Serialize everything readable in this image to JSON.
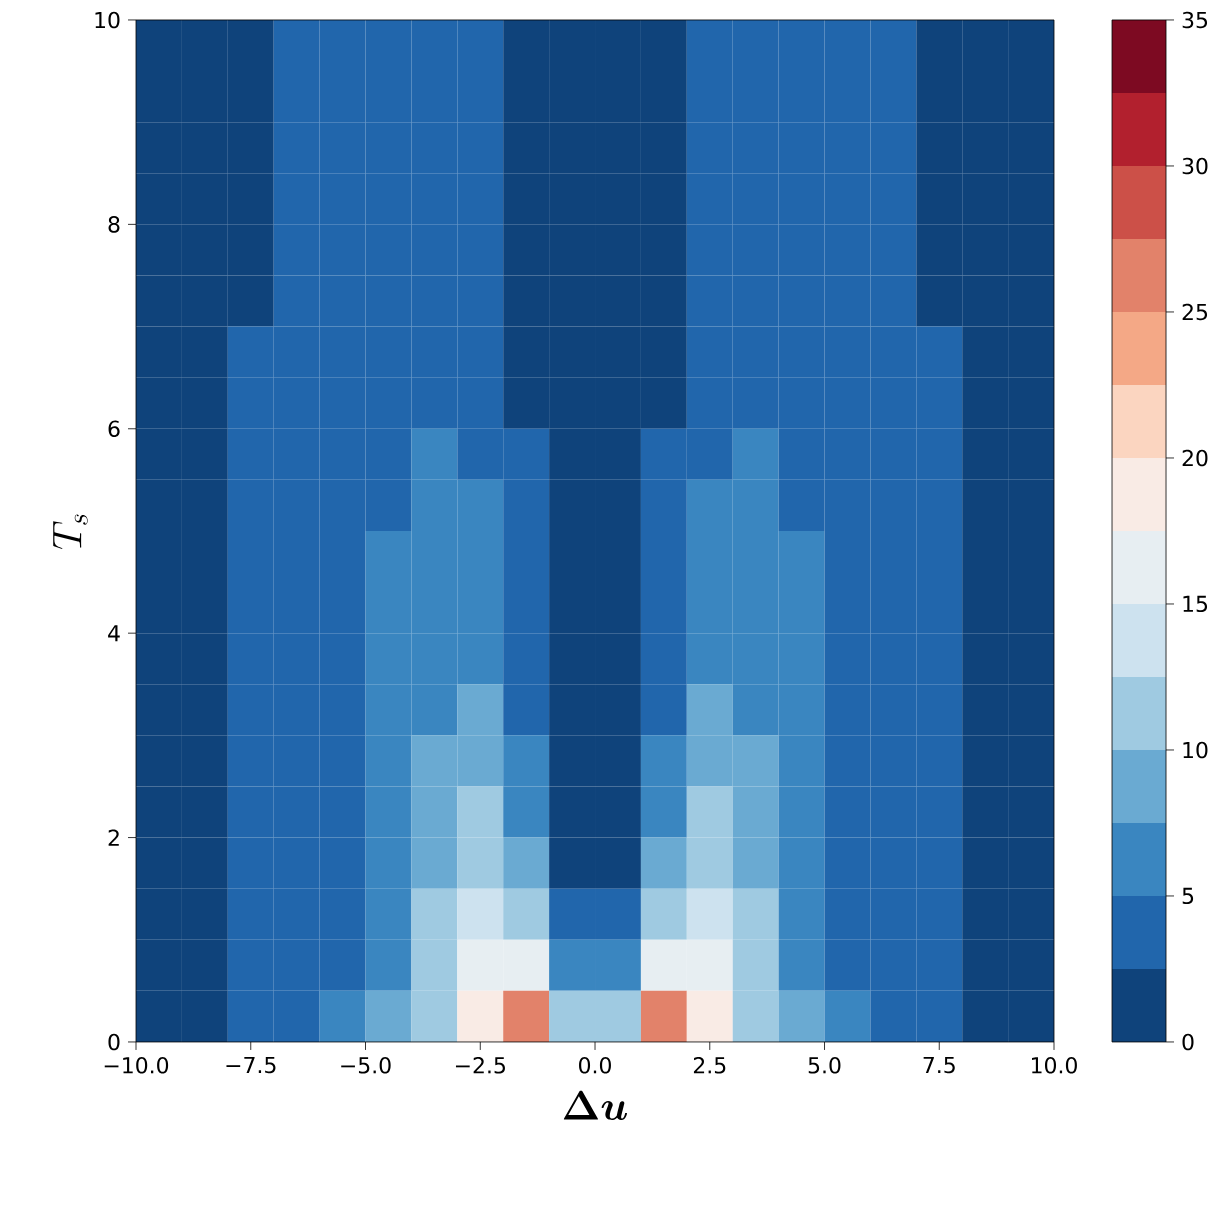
{
  "chart_data": {
    "type": "heatmap",
    "xlabel": "\\bm{\\Delta u}",
    "ylabel": "T_s",
    "x": [
      -9.5,
      -8.5,
      -7.5,
      -6.5,
      -5.5,
      -4.5,
      -3.5,
      -2.5,
      -1.5,
      -0.5,
      0.5,
      1.5,
      2.5,
      3.5,
      4.5,
      5.5,
      6.5,
      7.5,
      8.5,
      9.5
    ],
    "y": [
      9.75,
      9.25,
      8.75,
      8.25,
      7.75,
      7.25,
      6.75,
      6.25,
      5.75,
      5.25,
      4.75,
      4.25,
      3.75,
      3.25,
      2.75,
      2.25,
      1.75,
      1.25,
      0.75,
      0.25
    ],
    "xlim": [
      -10,
      10
    ],
    "ylim": [
      0,
      10
    ],
    "xticks": [
      {
        "value": -10,
        "label": "−10.0"
      },
      {
        "value": -7.5,
        "label": "−7.5"
      },
      {
        "value": -5,
        "label": "−5.0"
      },
      {
        "value": -2.5,
        "label": "−2.5"
      },
      {
        "value": 0,
        "label": "0.0"
      },
      {
        "value": 2.5,
        "label": "2.5"
      },
      {
        "value": 5,
        "label": "5.0"
      },
      {
        "value": 7.5,
        "label": "7.5"
      },
      {
        "value": 10,
        "label": "10.0"
      }
    ],
    "yticks": [
      0,
      2,
      4,
      6,
      8,
      10
    ],
    "clim": [
      0,
      35
    ],
    "cticks": [
      0,
      5,
      10,
      15,
      20,
      25,
      30,
      35
    ],
    "cells": [
      [
        1.6,
        1.9,
        2.3,
        2.9,
        3.1,
        3.3,
        3.4,
        3.1,
        2.0,
        1.3,
        1.3,
        2.0,
        3.1,
        3.4,
        3.3,
        3.1,
        2.9,
        2.3,
        1.9,
        1.6
      ],
      [
        1.6,
        1.9,
        2.3,
        2.9,
        3.2,
        3.4,
        3.6,
        3.3,
        2.1,
        1.3,
        1.3,
        2.1,
        3.3,
        3.6,
        3.4,
        3.2,
        2.9,
        2.3,
        1.9,
        1.6
      ],
      [
        1.6,
        1.9,
        2.4,
        3.0,
        3.3,
        3.6,
        3.7,
        3.4,
        2.1,
        1.4,
        1.4,
        2.1,
        3.4,
        3.7,
        3.6,
        3.3,
        3.0,
        2.4,
        1.9,
        1.6
      ],
      [
        1.6,
        1.9,
        2.4,
        3.0,
        3.4,
        3.7,
        3.9,
        3.6,
        2.2,
        1.4,
        1.4,
        2.2,
        3.6,
        3.9,
        3.7,
        3.4,
        3.0,
        2.4,
        1.9,
        1.6
      ],
      [
        1.6,
        1.9,
        2.4,
        3.1,
        3.5,
        3.9,
        4.1,
        3.8,
        2.2,
        1.4,
        1.4,
        2.2,
        3.8,
        4.1,
        3.9,
        3.5,
        3.1,
        2.4,
        1.9,
        1.6
      ],
      [
        1.6,
        2.0,
        2.4,
        3.1,
        3.6,
        4.0,
        4.3,
        4.0,
        2.3,
        1.5,
        1.5,
        2.3,
        4.0,
        4.3,
        4.0,
        3.6,
        3.1,
        2.4,
        2.0,
        1.6
      ],
      [
        1.7,
        2.0,
        2.6,
        3.2,
        3.7,
        4.2,
        4.5,
        4.2,
        2.3,
        1.5,
        1.5,
        2.3,
        4.2,
        4.5,
        4.2,
        3.7,
        3.2,
        2.6,
        2.0,
        1.7
      ],
      [
        1.7,
        2.0,
        2.6,
        3.2,
        3.8,
        4.4,
        4.8,
        4.5,
        2.4,
        1.5,
        1.5,
        2.4,
        4.5,
        4.8,
        4.4,
        3.8,
        3.2,
        2.6,
        2.0,
        1.7
      ],
      [
        1.7,
        2.0,
        2.7,
        3.2,
        3.9,
        4.6,
        5.1,
        4.8,
        2.8,
        1.6,
        1.6,
        2.8,
        4.8,
        5.1,
        4.6,
        3.9,
        3.2,
        2.7,
        2.0,
        1.7
      ],
      [
        1.7,
        2.0,
        2.7,
        3.3,
        4.0,
        4.8,
        5.5,
        5.1,
        3.0,
        1.6,
        1.6,
        3.0,
        5.1,
        5.5,
        4.8,
        4.0,
        3.3,
        2.7,
        2.0,
        1.7
      ],
      [
        1.7,
        2.0,
        2.7,
        3.3,
        4.1,
        5.0,
        5.9,
        5.6,
        3.2,
        1.7,
        1.7,
        3.2,
        5.6,
        5.9,
        5.0,
        4.1,
        3.3,
        2.7,
        2.0,
        1.7
      ],
      [
        1.8,
        2.1,
        2.7,
        3.3,
        4.2,
        5.2,
        6.3,
        6.3,
        3.5,
        1.7,
        1.7,
        3.5,
        6.3,
        6.3,
        5.2,
        4.2,
        3.3,
        2.7,
        2.1,
        1.8
      ],
      [
        1.8,
        2.1,
        2.7,
        3.4,
        4.3,
        5.5,
        6.8,
        7.0,
        4.0,
        1.8,
        1.8,
        4.0,
        7.0,
        6.8,
        5.5,
        4.3,
        3.4,
        2.7,
        2.1,
        1.8
      ],
      [
        1.8,
        2.1,
        2.7,
        3.4,
        4.4,
        5.8,
        7.3,
        7.8,
        4.5,
        1.9,
        1.9,
        4.5,
        7.8,
        7.3,
        5.8,
        4.4,
        3.4,
        2.7,
        2.1,
        1.8
      ],
      [
        1.8,
        2.1,
        2.8,
        3.4,
        4.5,
        6.1,
        8.0,
        8.8,
        5.5,
        2.0,
        2.0,
        5.5,
        8.8,
        8.0,
        6.1,
        4.5,
        3.4,
        2.8,
        2.1,
        1.8
      ],
      [
        1.8,
        2.1,
        2.8,
        3.5,
        4.6,
        6.4,
        8.8,
        10.2,
        7.0,
        2.2,
        2.2,
        7.0,
        10.2,
        8.8,
        6.4,
        4.6,
        3.5,
        2.8,
        2.1,
        1.8
      ],
      [
        1.8,
        2.2,
        2.8,
        3.5,
        4.7,
        6.7,
        9.5,
        11.5,
        9.0,
        2.4,
        2.4,
        9.0,
        11.5,
        9.5,
        6.7,
        4.7,
        3.5,
        2.8,
        2.2,
        1.8
      ],
      [
        1.9,
        2.2,
        2.8,
        3.5,
        4.8,
        7.0,
        10.5,
        13.0,
        12.0,
        3.5,
        3.5,
        12.0,
        13.0,
        10.5,
        7.0,
        4.8,
        3.5,
        2.8,
        2.2,
        1.9
      ],
      [
        1.9,
        2.2,
        2.8,
        3.6,
        4.9,
        7.3,
        11.5,
        15.5,
        17.0,
        6.0,
        6.0,
        17.0,
        15.5,
        11.5,
        7.3,
        4.9,
        3.6,
        2.8,
        2.2,
        1.9
      ],
      [
        1.9,
        2.2,
        2.8,
        3.6,
        5.1,
        7.6,
        12.0,
        19.0,
        26.0,
        12.0,
        12.0,
        26.0,
        19.0,
        12.0,
        7.6,
        5.1,
        3.6,
        2.8,
        2.2,
        1.9
      ]
    ]
  }
}
